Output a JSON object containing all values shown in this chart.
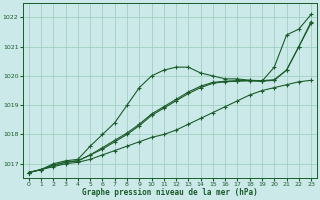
{
  "title": "Graphe pression niveau de la mer (hPa)",
  "background_color": "#cce9e9",
  "grid_color": "#99ccbb",
  "line_color": "#1a5c2a",
  "xlim": [
    -0.5,
    23.5
  ],
  "ylim": [
    1016.5,
    1022.5
  ],
  "xticks": [
    0,
    1,
    2,
    3,
    4,
    5,
    6,
    7,
    8,
    9,
    10,
    11,
    12,
    13,
    14,
    15,
    16,
    17,
    18,
    19,
    20,
    21,
    22,
    23
  ],
  "yticks": [
    1017,
    1018,
    1019,
    1020,
    1021,
    1022
  ],
  "line1": [
    1016.7,
    1016.8,
    1017.0,
    1017.1,
    1017.15,
    1017.6,
    1018.0,
    1018.4,
    1019.0,
    1019.6,
    1020.0,
    1020.2,
    1020.3,
    1020.3,
    1020.1,
    1020.0,
    1019.9,
    1019.9,
    1019.85,
    1019.82,
    1020.3,
    1021.4,
    1021.6,
    1022.1
  ],
  "line2": [
    1016.7,
    1016.8,
    1016.9,
    1017.0,
    1017.05,
    1017.15,
    1017.3,
    1017.45,
    1017.6,
    1017.75,
    1017.9,
    1018.0,
    1018.15,
    1018.35,
    1018.55,
    1018.75,
    1018.95,
    1019.15,
    1019.35,
    1019.5,
    1019.6,
    1019.7,
    1019.8,
    1019.85
  ],
  "line3": [
    1016.7,
    1016.8,
    1016.95,
    1017.05,
    1017.1,
    1017.3,
    1017.5,
    1017.75,
    1018.0,
    1018.3,
    1018.65,
    1018.9,
    1019.15,
    1019.4,
    1019.6,
    1019.75,
    1019.8,
    1019.82,
    1019.83,
    1019.82,
    1019.85,
    1020.2,
    1021.0,
    1021.8
  ],
  "line4": [
    1016.7,
    1016.8,
    1016.95,
    1017.05,
    1017.1,
    1017.3,
    1017.55,
    1017.8,
    1018.05,
    1018.35,
    1018.7,
    1018.95,
    1019.2,
    1019.45,
    1019.65,
    1019.78,
    1019.82,
    1019.84,
    1019.85,
    1019.84,
    1019.87,
    1020.2,
    1021.0,
    1021.85
  ]
}
